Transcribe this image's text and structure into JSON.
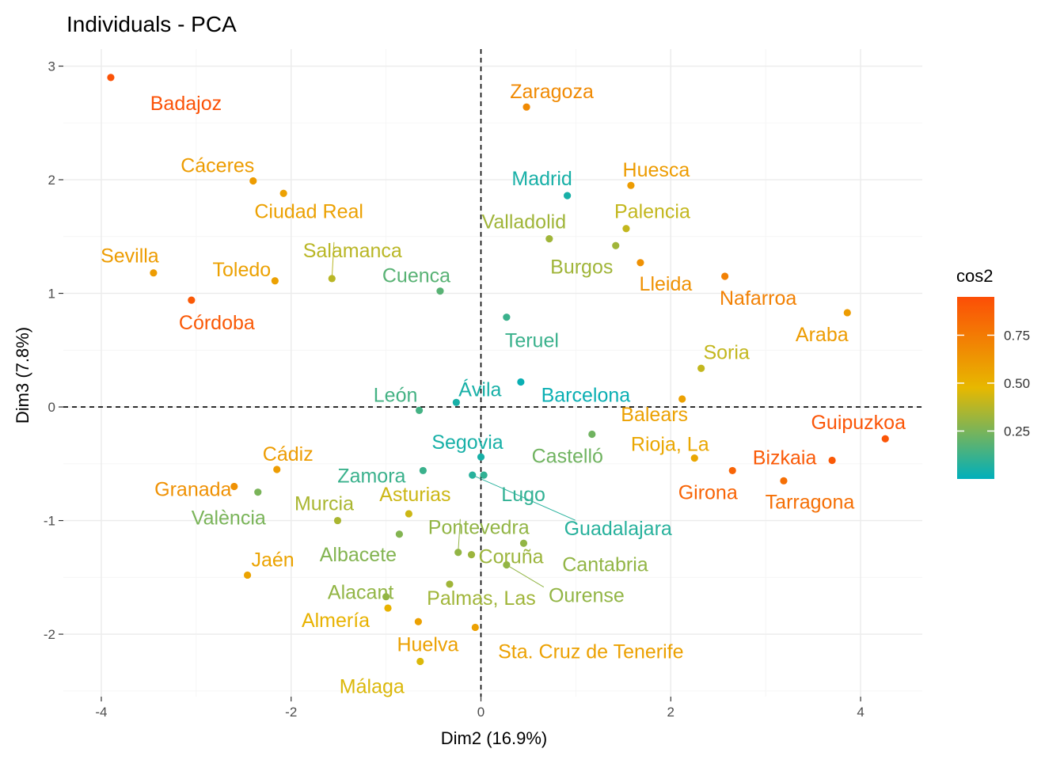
{
  "chart_data": {
    "type": "scatter",
    "title": "Individuals - PCA",
    "xlabel": "Dim2 (16.9%)",
    "ylabel": "Dim3 (7.8%)",
    "xlim": [
      -4.4,
      4.65
    ],
    "ylim": [
      -2.55,
      3.15
    ],
    "xticks": [
      -4,
      -2,
      0,
      2,
      4
    ],
    "yticks": [
      -2,
      -1,
      0,
      1,
      2,
      3
    ],
    "reference_lines": {
      "x": 0,
      "y": 0
    },
    "legend": {
      "title": "cos2",
      "placement": "right",
      "ticks": [
        0.25,
        0.5,
        0.75
      ],
      "range": [
        0.0,
        0.95
      ]
    },
    "color_scale": [
      "#00AFBB",
      "#E7B800",
      "#FC4E07"
    ],
    "points": [
      {
        "label": "Badajoz",
        "x": -3.9,
        "y": 2.9,
        "cos2": 0.93
      },
      {
        "label": "Zaragoza",
        "x": 0.48,
        "y": 2.64,
        "cos2": 0.68
      },
      {
        "label": "Cáceres",
        "x": -2.4,
        "y": 1.99,
        "cos2": 0.6
      },
      {
        "label": "Ciudad Real",
        "x": -2.08,
        "y": 1.88,
        "cos2": 0.58
      },
      {
        "label": "Madrid",
        "x": 0.91,
        "y": 1.86,
        "cos2": 0.05
      },
      {
        "label": "Huesca",
        "x": 1.58,
        "y": 1.95,
        "cos2": 0.6
      },
      {
        "label": "Valladolid",
        "x": 0.72,
        "y": 1.48,
        "cos2": 0.33
      },
      {
        "label": "Palencia",
        "x": 1.53,
        "y": 1.57,
        "cos2": 0.4
      },
      {
        "label": "Burgos",
        "x": 1.42,
        "y": 1.42,
        "cos2": 0.33
      },
      {
        "label": "Lleida",
        "x": 1.68,
        "y": 1.27,
        "cos2": 0.65
      },
      {
        "label": "Nafarroa",
        "x": 2.57,
        "y": 1.15,
        "cos2": 0.72
      },
      {
        "label": "Araba",
        "x": 3.86,
        "y": 0.83,
        "cos2": 0.6
      },
      {
        "label": "Sevilla",
        "x": -3.45,
        "y": 1.18,
        "cos2": 0.6
      },
      {
        "label": "Toledo",
        "x": -2.17,
        "y": 1.11,
        "cos2": 0.58
      },
      {
        "label": "Salamanca",
        "x": -1.57,
        "y": 1.13,
        "cos2": 0.38
      },
      {
        "label": "Cuenca",
        "x": -0.43,
        "y": 1.02,
        "cos2": 0.18
      },
      {
        "label": "Córdoba",
        "x": -3.05,
        "y": 0.94,
        "cos2": 0.9
      },
      {
        "label": "Teruel",
        "x": 0.27,
        "y": 0.79,
        "cos2": 0.12
      },
      {
        "label": "Soria",
        "x": 2.32,
        "y": 0.34,
        "cos2": 0.4
      },
      {
        "label": "Barcelona",
        "x": 0.42,
        "y": 0.22,
        "cos2": 0.02
      },
      {
        "label": "Ávila",
        "x": -0.26,
        "y": 0.04,
        "cos2": 0.05
      },
      {
        "label": "León",
        "x": -0.65,
        "y": -0.03,
        "cos2": 0.14
      },
      {
        "label": "Balears",
        "x": 2.12,
        "y": 0.07,
        "cos2": 0.58
      },
      {
        "label": "Guipuzkoa",
        "x": 4.26,
        "y": -0.28,
        "cos2": 0.92
      },
      {
        "label": "Castelló",
        "x": 1.17,
        "y": -0.24,
        "cos2": 0.23
      },
      {
        "label": "Segovia",
        "x": 0.0,
        "y": -0.44,
        "cos2": 0.05
      },
      {
        "label": "Zamora",
        "x": -0.61,
        "y": -0.56,
        "cos2": 0.12
      },
      {
        "label": "Rioja, La",
        "x": 2.25,
        "y": -0.45,
        "cos2": 0.55
      },
      {
        "label": "Bizkaia",
        "x": 3.7,
        "y": -0.47,
        "cos2": 0.9
      },
      {
        "label": "Cádiz",
        "x": -2.15,
        "y": -0.55,
        "cos2": 0.6
      },
      {
        "label": "Girona",
        "x": 2.65,
        "y": -0.56,
        "cos2": 0.85
      },
      {
        "label": "Tarragona",
        "x": 3.19,
        "y": -0.65,
        "cos2": 0.8
      },
      {
        "label": "Granada",
        "x": -2.6,
        "y": -0.7,
        "cos2": 0.65
      },
      {
        "label": "València",
        "x": -2.35,
        "y": -0.75,
        "cos2": 0.25
      },
      {
        "label": "Lugo",
        "x": 0.03,
        "y": -0.6,
        "cos2": 0.1
      },
      {
        "label": "Guadalajara",
        "x": -0.09,
        "y": -0.6,
        "cos2": 0.08
      },
      {
        "label": "Asturias",
        "x": -0.76,
        "y": -0.94,
        "cos2": 0.42
      },
      {
        "label": "Murcia",
        "x": -1.51,
        "y": -1.0,
        "cos2": 0.35
      },
      {
        "label": "Pontevedra",
        "x": -0.24,
        "y": -1.28,
        "cos2": 0.3
      },
      {
        "label": "Albacete",
        "x": -0.86,
        "y": -1.12,
        "cos2": 0.27
      },
      {
        "label": "Cantabria",
        "x": 0.45,
        "y": -1.2,
        "cos2": 0.3
      },
      {
        "label": "Jaén",
        "x": -2.46,
        "y": -1.48,
        "cos2": 0.57
      },
      {
        "label": "Coruña",
        "x": -0.1,
        "y": -1.3,
        "cos2": 0.32
      },
      {
        "label": "Ourense",
        "x": 0.27,
        "y": -1.39,
        "cos2": 0.3
      },
      {
        "label": "Alacant",
        "x": -1.0,
        "y": -1.67,
        "cos2": 0.3
      },
      {
        "label": "Palmas, Las",
        "x": -0.33,
        "y": -1.56,
        "cos2": 0.33
      },
      {
        "label": "Almería",
        "x": -0.98,
        "y": -1.77,
        "cos2": 0.5
      },
      {
        "label": "Huelva",
        "x": -0.66,
        "y": -1.89,
        "cos2": 0.58
      },
      {
        "label": "Sta. Cruz de Tenerife",
        "x": -0.06,
        "y": -1.94,
        "cos2": 0.58
      },
      {
        "label": "Málaga",
        "x": -0.64,
        "y": -2.24,
        "cos2": 0.45
      }
    ],
    "label_offsets": {
      "Badajoz": [
        95,
        32
      ],
      "Zaragoza": [
        32,
        -20
      ],
      "Cáceres": [
        -45,
        -20
      ],
      "Ciudad Real": [
        32,
        22
      ],
      "Madrid": [
        -32,
        -22
      ],
      "Huesca": [
        32,
        -20
      ],
      "Valladolid": [
        -32,
        -22
      ],
      "Palencia": [
        33,
        -22
      ],
      "Burgos": [
        -43,
        26
      ],
      "Lleida": [
        32,
        26
      ],
      "Nafarroa": [
        42,
        27
      ],
      "Araba": [
        -32,
        27
      ],
      "Sevilla": [
        -30,
        -22
      ],
      "Toledo": [
        -42,
        -15
      ],
      "Salamanca": [
        26,
        -36
      ],
      "Cuenca": [
        -30,
        -20
      ],
      "Córdoba": [
        32,
        28
      ],
      "Teruel": [
        32,
        29
      ],
      "Soria": [
        32,
        -21
      ],
      "Barcelona": [
        82,
        16
      ],
      "Ávila": [
        30,
        -17
      ],
      "León": [
        -30,
        -20
      ],
      "Balears": [
        -35,
        19
      ],
      "Guipuzkoa": [
        -34,
        -21
      ],
      "Castelló": [
        -31,
        27
      ],
      "Segovia": [
        -17,
        -19
      ],
      "Zamora": [
        -65,
        6
      ],
      "Rioja, La": [
        -31,
        -18
      ],
      "Bizkaia": [
        -60,
        -4
      ],
      "Cádiz": [
        14,
        -20
      ],
      "Girona": [
        -31,
        27
      ],
      "Tarragona": [
        33,
        26
      ],
      "Granada": [
        -52,
        3
      ],
      "València": [
        -37,
        32
      ],
      "Lugo": [
        50,
        24
      ],
      "Guadalajara": [
        184,
        67
      ],
      "Asturias": [
        8,
        -25
      ],
      "Murcia": [
        -17,
        -22
      ],
      "Pontevedra": [
        26,
        -32
      ],
      "Albacete": [
        -52,
        25
      ],
      "Cantabria": [
        103,
        26
      ],
      "Jaén": [
        32,
        -20
      ],
      "Coruña": [
        50,
        2
      ],
      "Ourense": [
        101,
        38
      ],
      "Alacant": [
        -32,
        -6
      ],
      "Palmas, Las": [
        40,
        17
      ],
      "Almería": [
        -66,
        15
      ],
      "Huelva": [
        12,
        28
      ],
      "Sta. Cruz de Tenerife": [
        146,
        30
      ],
      "Málaga": [
        -61,
        31
      ]
    },
    "leader_lines": [
      "Salamanca",
      "Guadalajara",
      "Pontevedra",
      "Ourense"
    ]
  }
}
